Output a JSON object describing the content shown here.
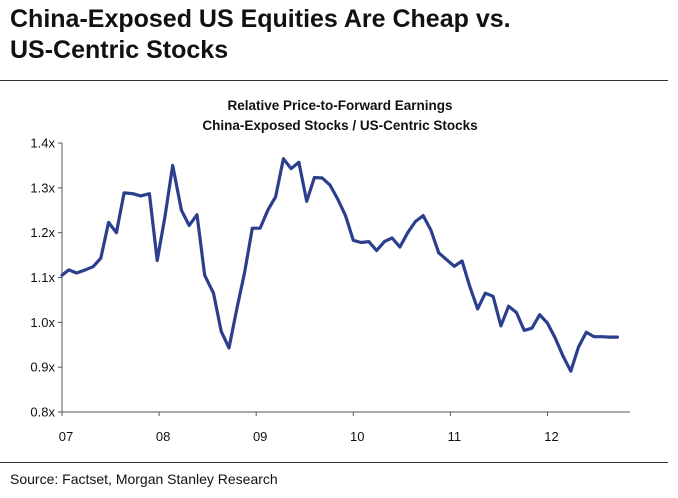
{
  "headline": {
    "line1": "China-Exposed US Equities Are Cheap vs.",
    "line2": "US-Centric Stocks"
  },
  "source": "Source: Factset, Morgan Stanley Research",
  "chart_data": {
    "type": "line",
    "title": "Relative Price-to-Forward Earnings",
    "subtitle": "China-Exposed Stocks /  US-Centric Stocks",
    "xlabel": "",
    "ylabel": "",
    "xlim": [
      2007.0,
      2012.85
    ],
    "ylim": [
      0.8,
      1.4
    ],
    "x_ticks": [
      {
        "value": 2007,
        "label": "07"
      },
      {
        "value": 2008,
        "label": "08"
      },
      {
        "value": 2009,
        "label": "09"
      },
      {
        "value": 2010,
        "label": "10"
      },
      {
        "value": 2011,
        "label": "11"
      },
      {
        "value": 2012,
        "label": "12"
      }
    ],
    "y_ticks": [
      {
        "value": 0.8,
        "label": "0.8x"
      },
      {
        "value": 0.9,
        "label": "0.9x"
      },
      {
        "value": 1.0,
        "label": "1.0x"
      },
      {
        "value": 1.1,
        "label": "1.1x"
      },
      {
        "value": 1.2,
        "label": "1.2x"
      },
      {
        "value": 1.3,
        "label": "1.3x"
      },
      {
        "value": 1.4,
        "label": "1.4x"
      }
    ],
    "grid": false,
    "series": [
      {
        "color": "#2b3f8c",
        "x": [
          2007.0,
          2007.07,
          2007.15,
          2007.23,
          2007.32,
          2007.4,
          2007.48,
          2007.56,
          2007.64,
          2007.73,
          2007.81,
          2007.9,
          2007.98,
          2008.06,
          2008.14,
          2008.23,
          2008.31,
          2008.39,
          2008.47,
          2008.56,
          2008.64,
          2008.72,
          2008.8,
          2008.88,
          2008.96,
          2009.04,
          2009.12,
          2009.2,
          2009.28,
          2009.36,
          2009.44,
          2009.52,
          2009.6,
          2009.68,
          2009.76,
          2009.84,
          2009.92,
          2010.0,
          2010.08,
          2010.16,
          2010.24,
          2010.32,
          2010.4,
          2010.48,
          2010.56,
          2010.64,
          2010.72,
          2010.8,
          2010.88,
          2010.96,
          2011.04,
          2011.12,
          2011.2,
          2011.28,
          2011.36,
          2011.44,
          2011.52,
          2011.6,
          2011.68,
          2011.76,
          2011.84,
          2011.92,
          2012.0,
          2012.08,
          2012.16,
          2012.24,
          2012.32,
          2012.4,
          2012.48,
          2012.56,
          2012.64,
          2012.72
        ],
        "y": [
          1.105,
          1.117,
          1.11,
          1.116,
          1.124,
          1.143,
          1.223,
          1.2,
          1.289,
          1.287,
          1.282,
          1.287,
          1.138,
          1.235,
          1.35,
          1.25,
          1.216,
          1.24,
          1.105,
          1.065,
          0.98,
          0.943,
          1.03,
          1.11,
          1.21,
          1.21,
          1.25,
          1.28,
          1.365,
          1.343,
          1.357,
          1.27,
          1.323,
          1.322,
          1.306,
          1.275,
          1.238,
          1.183,
          1.178,
          1.18,
          1.16,
          1.18,
          1.188,
          1.168,
          1.2,
          1.225,
          1.238,
          1.205,
          1.155,
          1.14,
          1.125,
          1.137,
          1.08,
          1.03,
          1.065,
          1.058,
          0.992,
          1.036,
          1.022,
          0.982,
          0.987,
          1.017,
          0.998,
          0.965,
          0.925,
          0.891,
          0.945,
          0.978,
          0.968,
          0.968,
          0.967,
          0.967
        ]
      }
    ]
  }
}
